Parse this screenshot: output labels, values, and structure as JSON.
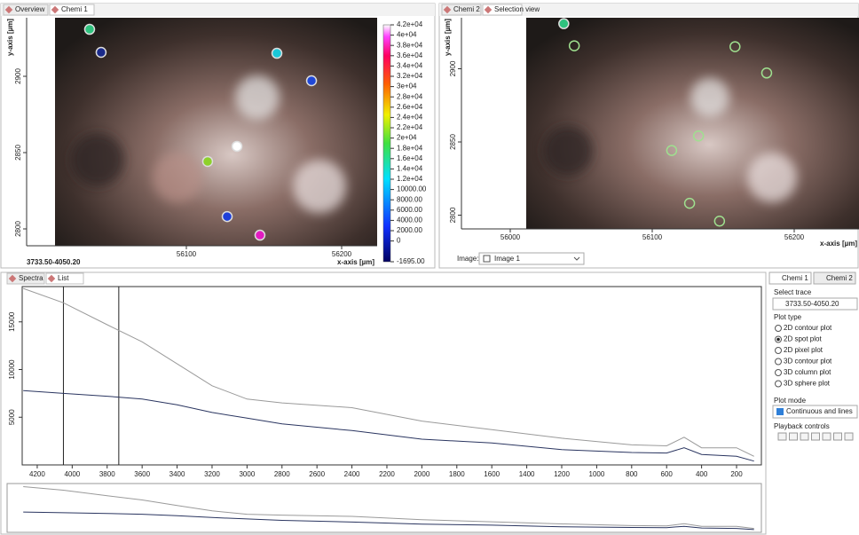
{
  "left_tabs": [
    "Overview",
    "Chemi 1"
  ],
  "right_tabs": [
    "Chemi 2",
    "Selection view"
  ],
  "image_view": {
    "y_label": "y-axis [µm]",
    "x_label": "x-axis [µm]",
    "trace": "3733.50-4050.20",
    "xticks": [
      56100,
      56200
    ],
    "yticks": [
      2900,
      2850,
      2800
    ],
    "spots": [
      {
        "x": 56037.7,
        "y": 2930.8,
        "color": "#2ec27e"
      },
      {
        "x": 56045.1,
        "y": 2915.7,
        "color": "#1a2a8a"
      },
      {
        "x": 56158.3,
        "y": 2915.1,
        "color": "#19c7d8"
      },
      {
        "x": 56180.6,
        "y": 2897.1,
        "color": "#2048d8"
      },
      {
        "x": 56132.6,
        "y": 2854.1,
        "color": "#ffffff"
      },
      {
        "x": 56113.7,
        "y": 2844.2,
        "color": "#8ed12a"
      },
      {
        "x": 56126.3,
        "y": 2808.1,
        "color": "#1f3fd8"
      },
      {
        "x": 56147.4,
        "y": 2795.9,
        "color": "#e21bc1"
      }
    ],
    "colorbar": [
      "4.2e+04",
      "4e+04",
      "3.8e+04",
      "3.6e+04",
      "3.4e+04",
      "3.2e+04",
      "3e+04",
      "2.8e+04",
      "2.6e+04",
      "2.4e+04",
      "2.2e+04",
      "2e+04",
      "1.8e+04",
      "1.6e+04",
      "1.4e+04",
      "1.2e+04",
      "10000.00",
      "8000.00",
      "6000.00",
      "4000.00",
      "2000.00",
      "0",
      "-1695.00"
    ]
  },
  "selection_view": {
    "y_label": "y-axis [µm]",
    "x_label": "x-axis [µm]",
    "xticks": [
      56000,
      56100,
      56200
    ],
    "yticks": [
      2900,
      2850,
      2800
    ],
    "image_label": "Image:",
    "image_value": "Image 1"
  },
  "bottom_tabs": [
    "Spectra",
    "List"
  ],
  "spectra": {
    "x": [
      4280,
      4050,
      3800,
      3600,
      3400,
      3200,
      3000,
      2800,
      2400,
      2000,
      1600,
      1200,
      800,
      600,
      500,
      400,
      200,
      100
    ],
    "series": [
      {
        "color": "#9a9a9a",
        "values": [
          18500,
          17000,
          14700,
          12900,
          10600,
          8300,
          6900,
          6500,
          6000,
          4600,
          3700,
          2800,
          2100,
          2000,
          2900,
          1800,
          1800,
          900
        ]
      },
      {
        "color": "#2a3560",
        "values": [
          7800,
          7500,
          7200,
          6900,
          6300,
          5500,
          4900,
          4300,
          3600,
          2700,
          2300,
          1600,
          1300,
          1250,
          1800,
          1100,
          900,
          400
        ]
      }
    ],
    "xlim": [
      4286,
      58
    ],
    "ylim": [
      0,
      18700
    ],
    "xticks": [
      4200,
      4000,
      3800,
      3600,
      3400,
      3200,
      3000,
      2800,
      2600,
      2400,
      2200,
      2000,
      1800,
      1600,
      1400,
      1200,
      1000,
      800,
      600,
      400,
      200
    ],
    "yticks": [
      5000,
      10000,
      15000
    ],
    "markers": [
      4050.2,
      3733.5
    ]
  },
  "side_panel": {
    "tabs": [
      "Chemi 1",
      "Chemi 2"
    ],
    "select_trace": "Select trace",
    "trace": "3733.50-4050.20",
    "plot_type": "Plot type",
    "options": [
      "2D contour plot",
      "2D spot plot",
      "2D pixel plot",
      "3D contour plot",
      "3D column plot",
      "3D sphere plot"
    ],
    "selected": 1,
    "plot_mode": "Plot mode",
    "mode": "Continuous and lines",
    "playback": "Playback controls"
  }
}
